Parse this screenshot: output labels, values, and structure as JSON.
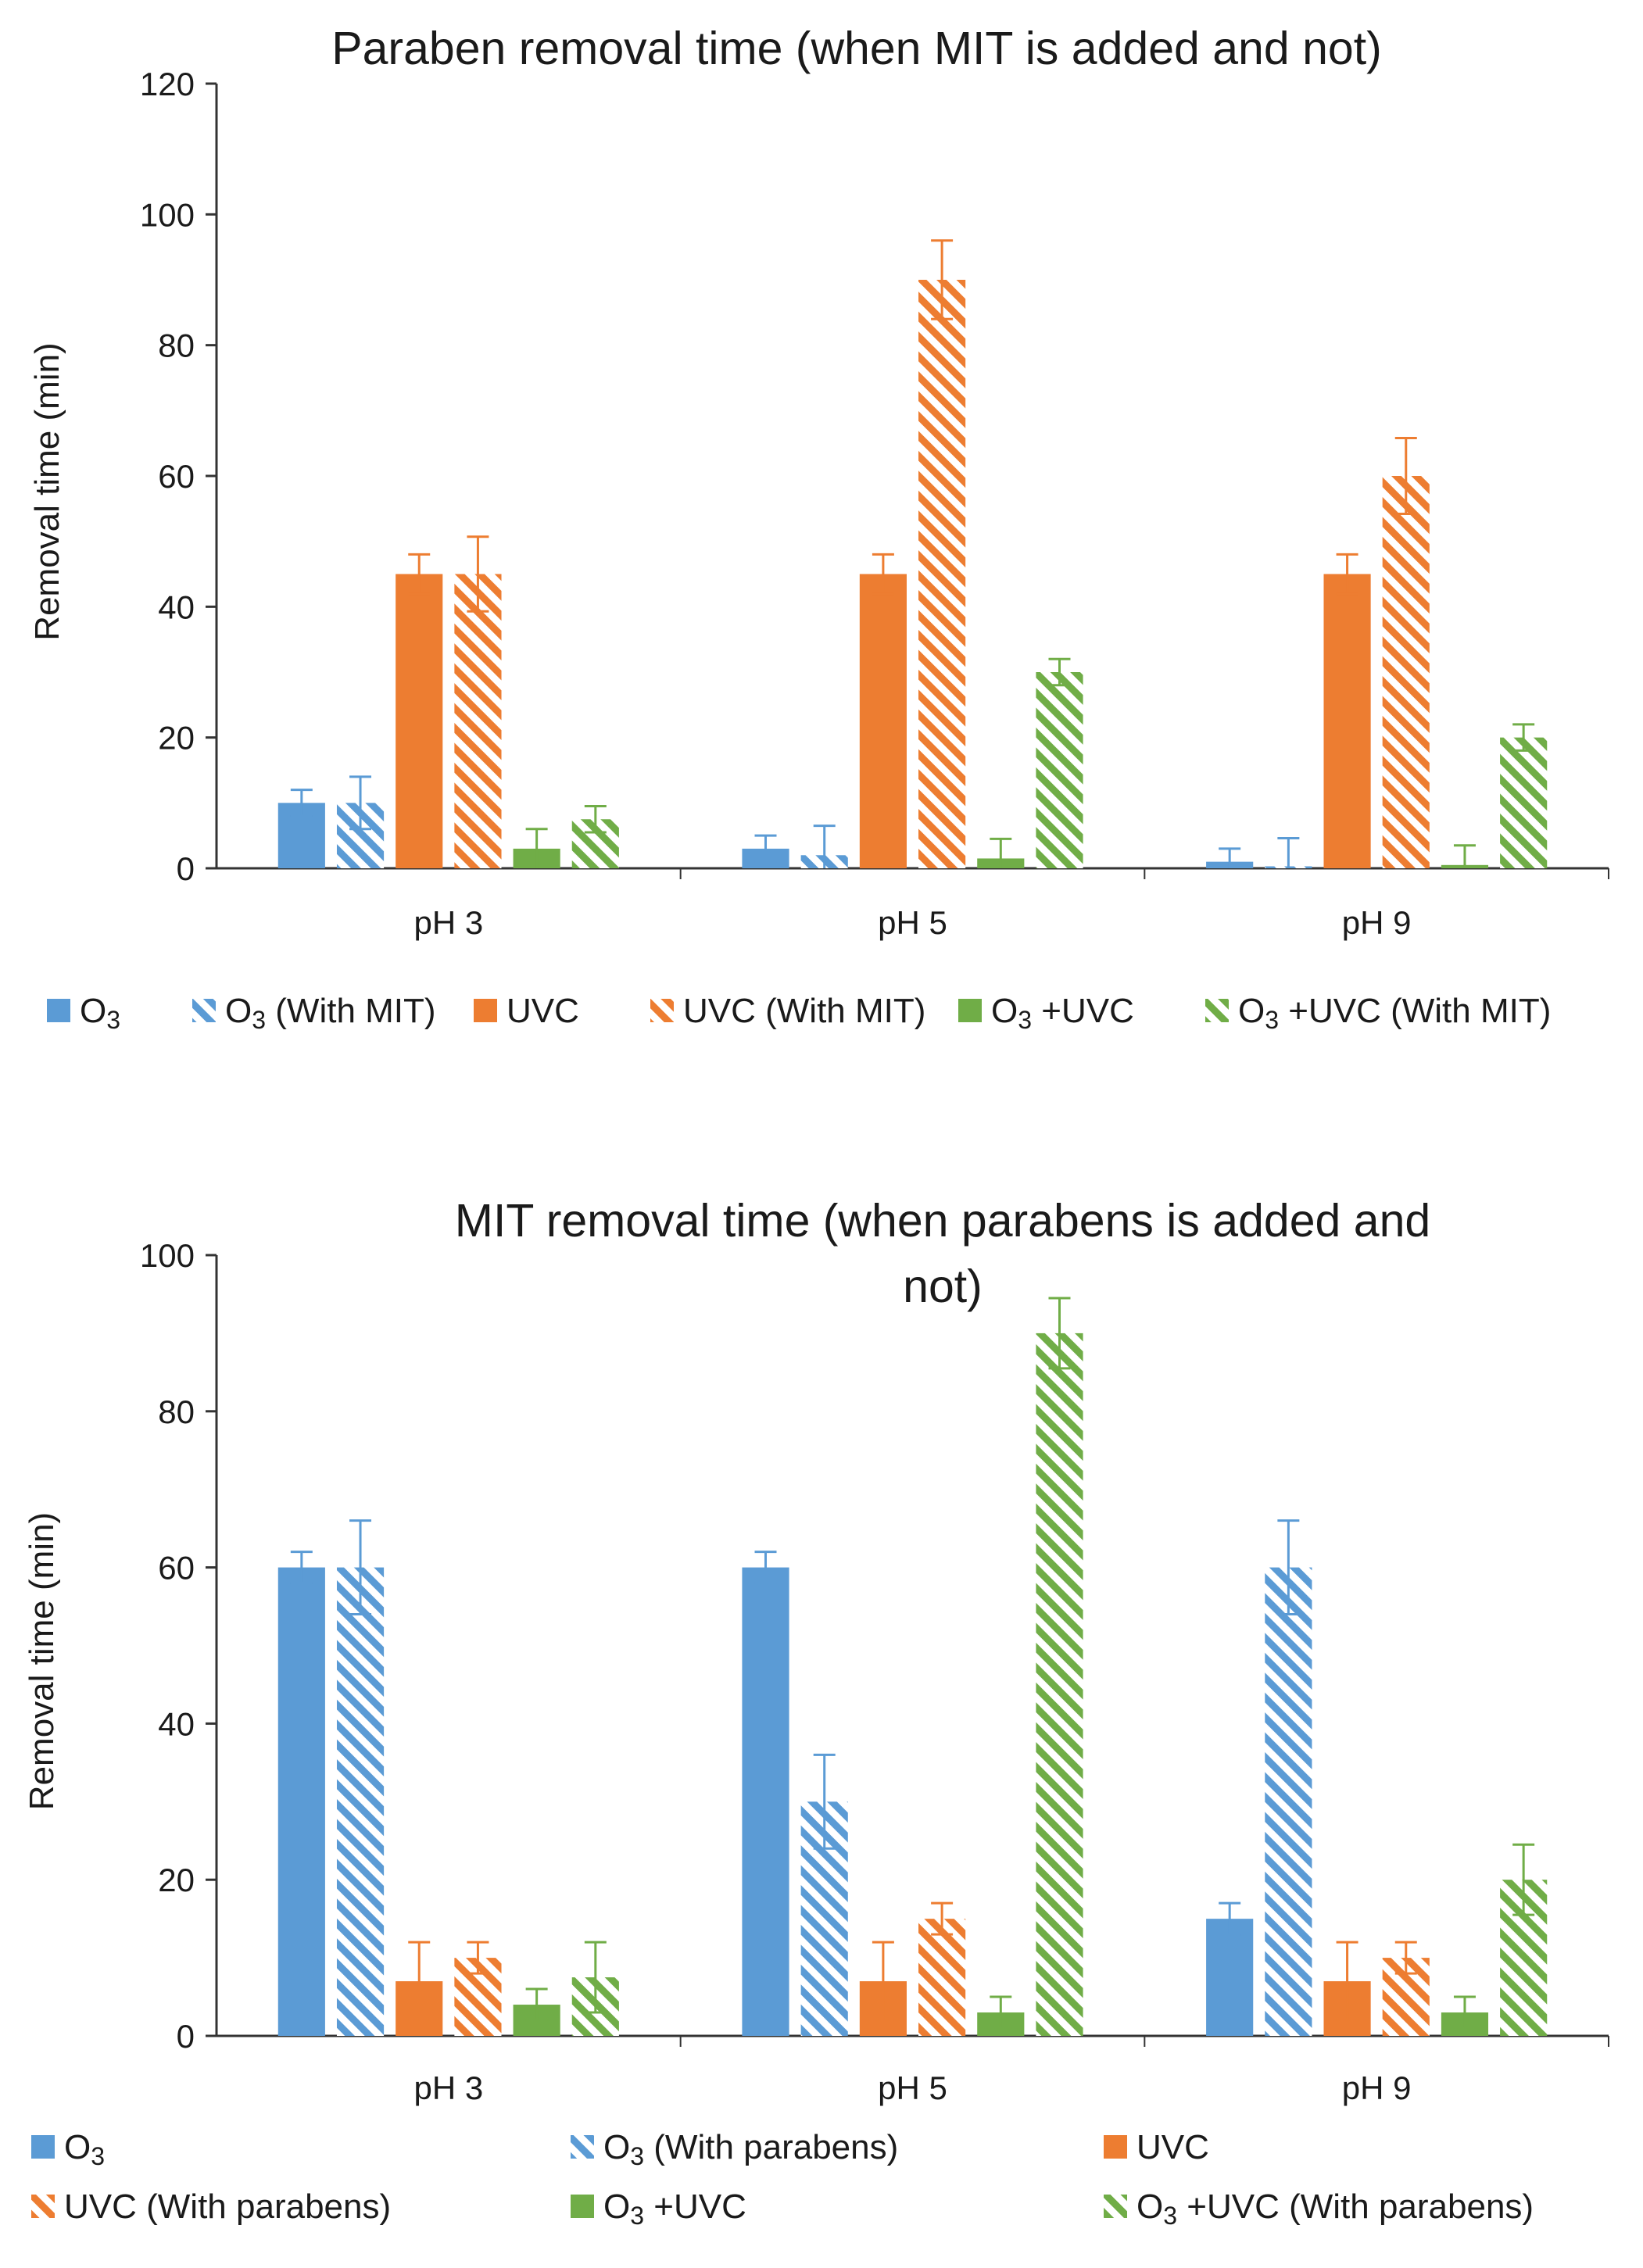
{
  "chart_data": [
    {
      "type": "bar",
      "title_lines": [
        "Paraben removal time (when MIT is added and not)"
      ],
      "xlabel": "",
      "ylabel": "Removal time (min)",
      "ylim": [
        0,
        120
      ],
      "yticks": [
        0,
        20,
        40,
        60,
        80,
        100,
        120
      ],
      "categories": [
        "pH 3",
        "pH 5",
        "pH 9"
      ],
      "legend_position": "bottom",
      "series": [
        {
          "name": "O3",
          "label_parts": [
            "O",
            "3",
            ""
          ],
          "color": "#5B9BD5",
          "pattern": "solid",
          "values": [
            10,
            3,
            1
          ],
          "errors": [
            2,
            2,
            2
          ]
        },
        {
          "name": "O3 (With MIT)",
          "label_parts": [
            "O",
            "3",
            "  (With MIT)"
          ],
          "color": "#5B9BD5",
          "pattern": "hatch",
          "values": [
            10,
            2,
            0.3
          ],
          "errors": [
            4,
            4.5,
            4.3
          ]
        },
        {
          "name": "UVC",
          "label_parts": [
            "UVC",
            "",
            ""
          ],
          "color": "#ED7D31",
          "pattern": "solid",
          "values": [
            45,
            45,
            45
          ],
          "errors": [
            3,
            3,
            3
          ]
        },
        {
          "name": "UVC (With MIT)",
          "label_parts": [
            "UVC (With MIT)",
            "",
            ""
          ],
          "color": "#ED7D31",
          "pattern": "hatch",
          "values": [
            45,
            90,
            60
          ],
          "errors": [
            5.7,
            6,
            5.8
          ]
        },
        {
          "name": "O3 +UVC",
          "label_parts": [
            "O",
            "3",
            " +UVC"
          ],
          "color": "#70AD47",
          "pattern": "solid",
          "values": [
            3,
            1.5,
            0.5
          ],
          "errors": [
            3,
            3,
            3
          ]
        },
        {
          "name": "O3 +UVC (With MIT)",
          "label_parts": [
            "O",
            "3",
            " +UVC (With MIT)"
          ],
          "color": "#70AD47",
          "pattern": "hatch",
          "values": [
            7.5,
            30,
            20
          ],
          "errors": [
            2,
            2,
            2
          ]
        }
      ]
    },
    {
      "type": "bar",
      "title_lines": [
        "MIT removal time (when parabens is added and",
        "not)"
      ],
      "xlabel": "",
      "ylabel": "Removal time (min)",
      "ylim": [
        0,
        100
      ],
      "yticks": [
        0,
        20,
        40,
        60,
        80,
        100
      ],
      "categories": [
        "pH 3",
        "pH 5",
        "pH 9"
      ],
      "legend_position": "bottom",
      "series": [
        {
          "name": "O3",
          "label_parts": [
            "O",
            "3",
            ""
          ],
          "color": "#5B9BD5",
          "pattern": "solid",
          "values": [
            60,
            60,
            15
          ],
          "errors": [
            2,
            2,
            2
          ]
        },
        {
          "name": "O3 (With parabens)",
          "label_parts": [
            "O",
            "3",
            "  (With parabens)"
          ],
          "color": "#5B9BD5",
          "pattern": "hatch",
          "values": [
            60,
            30,
            60
          ],
          "errors": [
            6,
            6,
            6
          ]
        },
        {
          "name": "UVC",
          "label_parts": [
            "UVC",
            "",
            ""
          ],
          "color": "#ED7D31",
          "pattern": "solid",
          "values": [
            7,
            7,
            7
          ],
          "errors": [
            5,
            5,
            5
          ]
        },
        {
          "name": "UVC (With parabens)",
          "label_parts": [
            "UVC (With parabens)",
            "",
            ""
          ],
          "color": "#ED7D31",
          "pattern": "hatch",
          "values": [
            10,
            15,
            10
          ],
          "errors": [
            2,
            2,
            2
          ]
        },
        {
          "name": "O3 +UVC",
          "label_parts": [
            "O",
            "3",
            " +UVC"
          ],
          "color": "#70AD47",
          "pattern": "solid",
          "values": [
            4,
            3,
            3
          ],
          "errors": [
            2,
            2,
            2
          ]
        },
        {
          "name": "O3 +UVC (With parabens)",
          "label_parts": [
            "O",
            "3",
            " +UVC (With parabens)"
          ],
          "color": "#70AD47",
          "pattern": "hatch",
          "values": [
            7.5,
            90,
            20
          ],
          "errors": [
            4.5,
            4.5,
            4.5
          ]
        }
      ]
    }
  ]
}
